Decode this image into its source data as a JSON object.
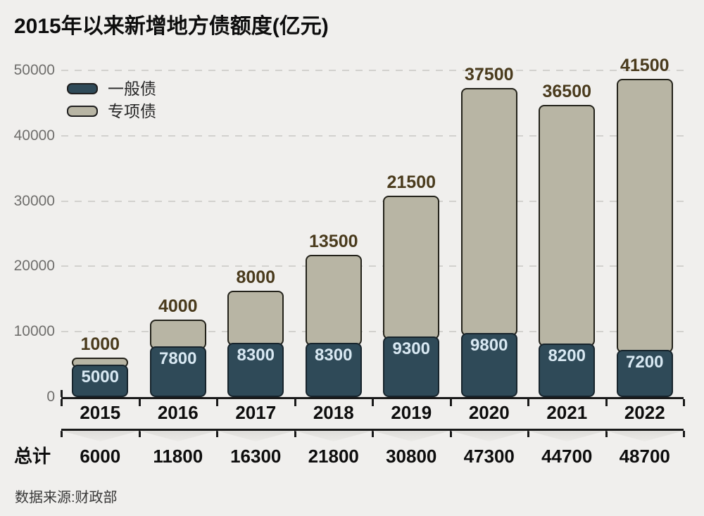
{
  "title": "2015年以来新增地方债额度(亿元)",
  "source": "数据来源:财政部",
  "totals_row_label": "总计",
  "chart_data": {
    "type": "bar",
    "stacked": true,
    "title": "2015年以来新增地方债额度(亿元)",
    "unit": "亿元",
    "categories": [
      "2015",
      "2016",
      "2017",
      "2018",
      "2019",
      "2020",
      "2021",
      "2022"
    ],
    "series": [
      {
        "name": "一般债",
        "values": [
          5000,
          7800,
          8300,
          8300,
          9300,
          9800,
          8200,
          7200
        ]
      },
      {
        "name": "专项债",
        "values": [
          1000,
          4000,
          8000,
          13500,
          21500,
          37500,
          36500,
          41500
        ]
      }
    ],
    "totals": [
      6000,
      11800,
      16300,
      21800,
      30800,
      47300,
      44700,
      48700
    ],
    "ylim": [
      0,
      50000
    ],
    "yticks": [
      0,
      10000,
      20000,
      30000,
      40000,
      50000
    ],
    "grid": "horizontal-dashed",
    "legend_position": "top-left-inside",
    "legend": [
      "一般债",
      "专项债"
    ]
  },
  "colors": {
    "background": "#f0efed",
    "title_text": "#0d0d0d",
    "general_fill": "#2f4a58",
    "general_border": "#17242c",
    "general_label": "#d8e8f2",
    "special_fill": "#b8b5a4",
    "special_border": "#23221a",
    "special_label": "#4a3b1d",
    "grid": "#d2d1ce",
    "axis": "#1a1a1a",
    "ytick_label": "#6f6e6c",
    "category_text": "#0d0d0d",
    "totals_text": "#0d0d0d",
    "source_text": "#383838",
    "shade_triangle": "#deddda"
  }
}
